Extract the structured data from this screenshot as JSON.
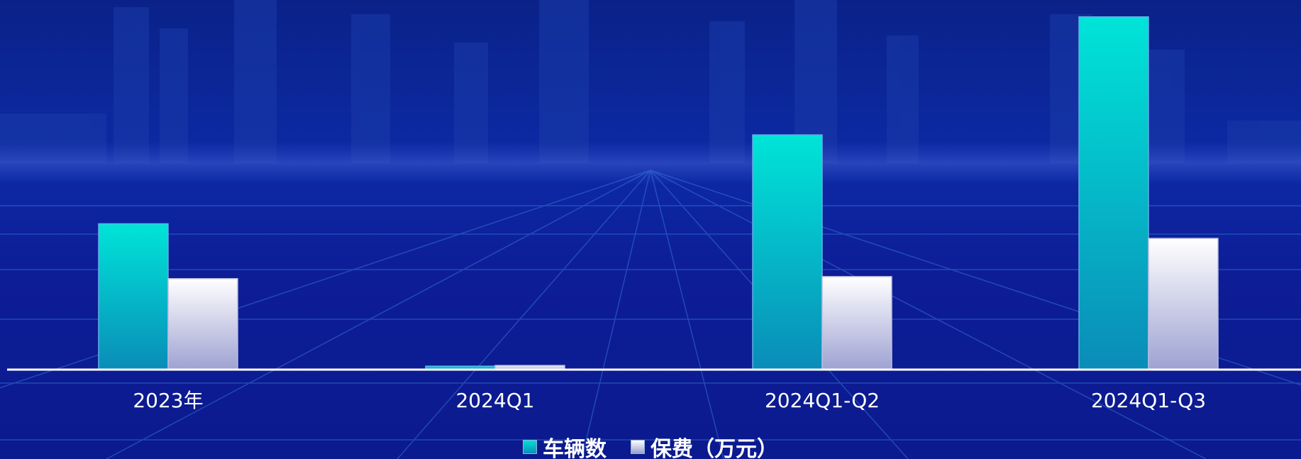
{
  "chart_data": {
    "type": "bar",
    "categories": [
      "2023年",
      "2024Q1",
      "2024Q1-Q2",
      "2024Q1-Q3"
    ],
    "series": [
      {
        "name": "车辆数",
        "values": [
          210,
          5,
          338,
          508
        ],
        "color": "#00dcd4"
      },
      {
        "name": "保费（万元）",
        "values": [
          131,
          6,
          134,
          189
        ],
        "color": "#e8e8f4"
      }
    ],
    "ylim": [
      0,
      520
    ],
    "grid": false,
    "legend": "bottom-center",
    "title": "",
    "xlabel": "",
    "ylabel": ""
  }
}
